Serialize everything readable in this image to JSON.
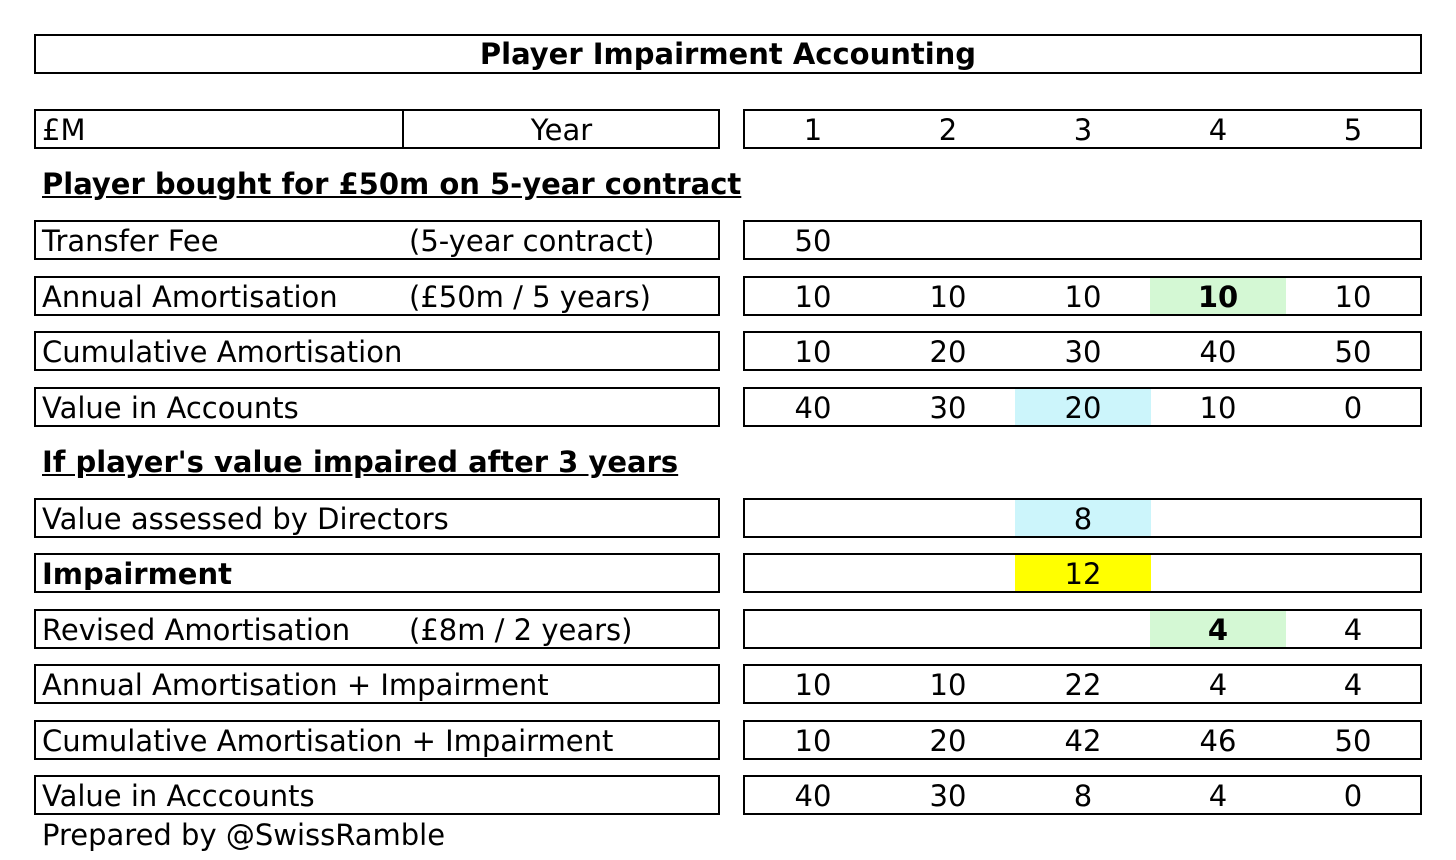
{
  "chart_data": {
    "type": "table",
    "title": "Player Impairment Accounting",
    "unit_label": "£M",
    "year_label": "Year",
    "years": [
      "1",
      "2",
      "3",
      "4",
      "5"
    ],
    "sections": [
      {
        "heading": "Player bought for £50m on 5-year contract",
        "rows": [
          {
            "label": "Transfer Fee",
            "note": "(5-year contract)",
            "bold": false,
            "values": [
              "50",
              "",
              "",
              "",
              ""
            ],
            "highlights": [
              "",
              "",
              "",
              "",
              ""
            ],
            "bold_cells": [
              false,
              false,
              false,
              false,
              false
            ]
          },
          {
            "label": "Annual Amortisation",
            "note": "(£50m / 5 years)",
            "bold": false,
            "values": [
              "10",
              "10",
              "10",
              "10",
              "10"
            ],
            "highlights": [
              "",
              "",
              "",
              "#d4f8d4",
              ""
            ],
            "bold_cells": [
              false,
              false,
              false,
              true,
              false
            ]
          },
          {
            "label": "Cumulative Amortisation",
            "note": "",
            "bold": false,
            "values": [
              "10",
              "20",
              "30",
              "40",
              "50"
            ],
            "highlights": [
              "",
              "",
              "",
              "",
              ""
            ],
            "bold_cells": [
              false,
              false,
              false,
              false,
              false
            ]
          },
          {
            "label": "Value in Accounts",
            "note": "",
            "bold": false,
            "values": [
              "40",
              "30",
              "20",
              "10",
              "0"
            ],
            "highlights": [
              "",
              "",
              "#ccf5fb",
              "",
              ""
            ],
            "bold_cells": [
              false,
              false,
              false,
              false,
              false
            ]
          }
        ]
      },
      {
        "heading": "If player's value impaired after 3 years",
        "rows": [
          {
            "label": "Value assessed by Directors",
            "note": "",
            "bold": false,
            "values": [
              "",
              "",
              "8",
              "",
              ""
            ],
            "highlights": [
              "",
              "",
              "#ccf5fb",
              "",
              ""
            ],
            "bold_cells": [
              false,
              false,
              false,
              false,
              false
            ]
          },
          {
            "label": "Impairment",
            "note": "",
            "bold": true,
            "values": [
              "",
              "",
              "12",
              "",
              ""
            ],
            "highlights": [
              "",
              "",
              "#ffff00",
              "",
              ""
            ],
            "bold_cells": [
              false,
              false,
              false,
              false,
              false
            ]
          },
          {
            "label": "Revised Amortisation",
            "note": "(£8m / 2 years)",
            "bold": false,
            "values": [
              "",
              "",
              "",
              "4",
              "4"
            ],
            "highlights": [
              "",
              "",
              "",
              "#d4f8d4",
              ""
            ],
            "bold_cells": [
              false,
              false,
              false,
              true,
              false
            ]
          },
          {
            "label": "Annual Amortisation + Impairment",
            "note": "",
            "bold": false,
            "values": [
              "10",
              "10",
              "22",
              "4",
              "4"
            ],
            "highlights": [
              "",
              "",
              "",
              "",
              ""
            ],
            "bold_cells": [
              false,
              false,
              false,
              false,
              false
            ]
          },
          {
            "label": "Cumulative Amortisation + Impairment",
            "note": "",
            "bold": false,
            "values": [
              "10",
              "20",
              "42",
              "46",
              "50"
            ],
            "highlights": [
              "",
              "",
              "",
              "",
              ""
            ],
            "bold_cells": [
              false,
              false,
              false,
              false,
              false
            ]
          },
          {
            "label": "Value in Acccounts",
            "note": "",
            "bold": false,
            "values": [
              "40",
              "30",
              "8",
              "4",
              "0"
            ],
            "highlights": [
              "",
              "",
              "",
              "",
              ""
            ],
            "bold_cells": [
              false,
              false,
              false,
              false,
              false
            ]
          }
        ]
      }
    ],
    "footer": "Prepared by @SwissRamble"
  }
}
